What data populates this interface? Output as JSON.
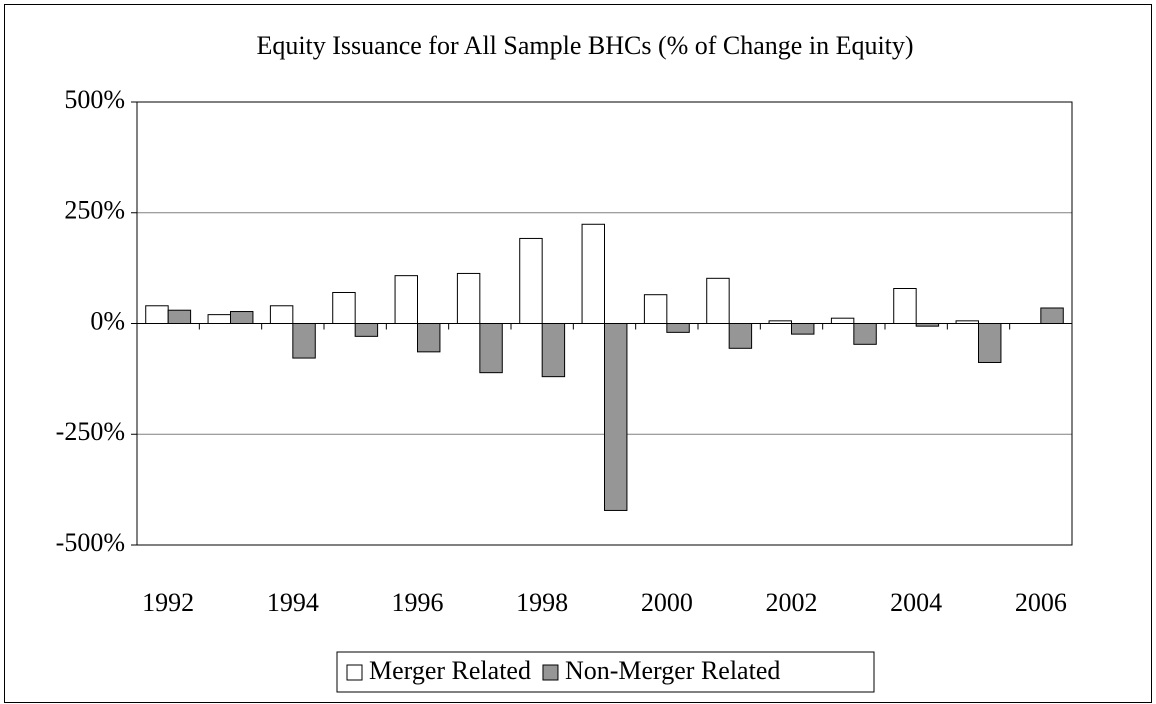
{
  "chart_data": {
    "type": "bar",
    "title": "Equity Issuance for All Sample BHCs (% of Change in Equity)",
    "categories": [
      "1992",
      null,
      "1994",
      null,
      "1996",
      null,
      "1998",
      null,
      "2000",
      null,
      "2002",
      null,
      "2004",
      null,
      "2006"
    ],
    "series": [
      {
        "name": "Merger Related",
        "color": "#ffffff",
        "values": [
          40,
          20,
          40,
          70,
          108,
          113,
          192,
          224,
          65,
          102,
          6,
          12,
          79,
          6,
          0
        ]
      },
      {
        "name": "Non-Merger Related",
        "color": "#969696",
        "values": [
          30,
          27,
          -78,
          -29,
          -64,
          -111,
          -120,
          -422,
          -20,
          -56,
          -24,
          -47,
          -6,
          -88,
          35
        ]
      }
    ],
    "ylim": [
      -500,
      500
    ],
    "yticks": [
      {
        "value": -500,
        "label": "-500%"
      },
      {
        "value": -250,
        "label": "-250%"
      },
      {
        "value": 0,
        "label": "0%"
      },
      {
        "value": 250,
        "label": "250%"
      },
      {
        "value": 500,
        "label": "500%"
      }
    ],
    "grid": true,
    "legend": "bottom"
  }
}
